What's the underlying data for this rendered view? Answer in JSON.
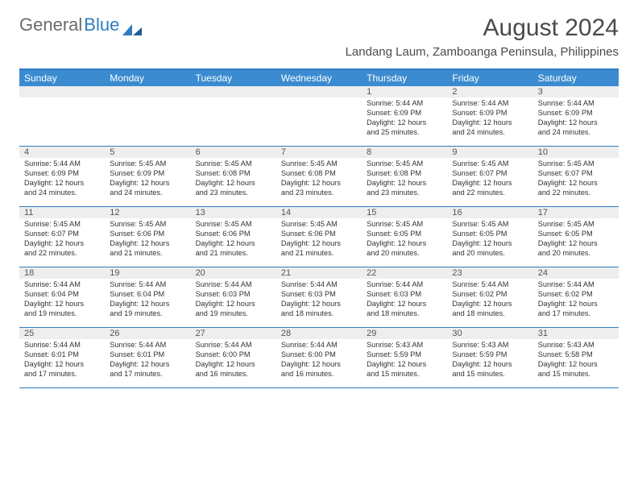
{
  "brand": {
    "text1": "General",
    "text2": "Blue"
  },
  "title": "August 2024",
  "location": "Landang Laum, Zamboanga Peninsula, Philippines",
  "colors": {
    "header_blue": "#3b8bd0",
    "border_blue": "#2f7cc0",
    "daynum_bg": "#eeeeee",
    "text": "#333333",
    "title_text": "#4a4a4a",
    "logo_grey": "#6b6b6b"
  },
  "day_names": [
    "Sunday",
    "Monday",
    "Tuesday",
    "Wednesday",
    "Thursday",
    "Friday",
    "Saturday"
  ],
  "weeks": [
    [
      {
        "n": "",
        "sr": "",
        "ss": "",
        "dl1": "",
        "dl2": ""
      },
      {
        "n": "",
        "sr": "",
        "ss": "",
        "dl1": "",
        "dl2": ""
      },
      {
        "n": "",
        "sr": "",
        "ss": "",
        "dl1": "",
        "dl2": ""
      },
      {
        "n": "",
        "sr": "",
        "ss": "",
        "dl1": "",
        "dl2": ""
      },
      {
        "n": "1",
        "sr": "Sunrise: 5:44 AM",
        "ss": "Sunset: 6:09 PM",
        "dl1": "Daylight: 12 hours",
        "dl2": "and 25 minutes."
      },
      {
        "n": "2",
        "sr": "Sunrise: 5:44 AM",
        "ss": "Sunset: 6:09 PM",
        "dl1": "Daylight: 12 hours",
        "dl2": "and 24 minutes."
      },
      {
        "n": "3",
        "sr": "Sunrise: 5:44 AM",
        "ss": "Sunset: 6:09 PM",
        "dl1": "Daylight: 12 hours",
        "dl2": "and 24 minutes."
      }
    ],
    [
      {
        "n": "4",
        "sr": "Sunrise: 5:44 AM",
        "ss": "Sunset: 6:09 PM",
        "dl1": "Daylight: 12 hours",
        "dl2": "and 24 minutes."
      },
      {
        "n": "5",
        "sr": "Sunrise: 5:45 AM",
        "ss": "Sunset: 6:09 PM",
        "dl1": "Daylight: 12 hours",
        "dl2": "and 24 minutes."
      },
      {
        "n": "6",
        "sr": "Sunrise: 5:45 AM",
        "ss": "Sunset: 6:08 PM",
        "dl1": "Daylight: 12 hours",
        "dl2": "and 23 minutes."
      },
      {
        "n": "7",
        "sr": "Sunrise: 5:45 AM",
        "ss": "Sunset: 6:08 PM",
        "dl1": "Daylight: 12 hours",
        "dl2": "and 23 minutes."
      },
      {
        "n": "8",
        "sr": "Sunrise: 5:45 AM",
        "ss": "Sunset: 6:08 PM",
        "dl1": "Daylight: 12 hours",
        "dl2": "and 23 minutes."
      },
      {
        "n": "9",
        "sr": "Sunrise: 5:45 AM",
        "ss": "Sunset: 6:07 PM",
        "dl1": "Daylight: 12 hours",
        "dl2": "and 22 minutes."
      },
      {
        "n": "10",
        "sr": "Sunrise: 5:45 AM",
        "ss": "Sunset: 6:07 PM",
        "dl1": "Daylight: 12 hours",
        "dl2": "and 22 minutes."
      }
    ],
    [
      {
        "n": "11",
        "sr": "Sunrise: 5:45 AM",
        "ss": "Sunset: 6:07 PM",
        "dl1": "Daylight: 12 hours",
        "dl2": "and 22 minutes."
      },
      {
        "n": "12",
        "sr": "Sunrise: 5:45 AM",
        "ss": "Sunset: 6:06 PM",
        "dl1": "Daylight: 12 hours",
        "dl2": "and 21 minutes."
      },
      {
        "n": "13",
        "sr": "Sunrise: 5:45 AM",
        "ss": "Sunset: 6:06 PM",
        "dl1": "Daylight: 12 hours",
        "dl2": "and 21 minutes."
      },
      {
        "n": "14",
        "sr": "Sunrise: 5:45 AM",
        "ss": "Sunset: 6:06 PM",
        "dl1": "Daylight: 12 hours",
        "dl2": "and 21 minutes."
      },
      {
        "n": "15",
        "sr": "Sunrise: 5:45 AM",
        "ss": "Sunset: 6:05 PM",
        "dl1": "Daylight: 12 hours",
        "dl2": "and 20 minutes."
      },
      {
        "n": "16",
        "sr": "Sunrise: 5:45 AM",
        "ss": "Sunset: 6:05 PM",
        "dl1": "Daylight: 12 hours",
        "dl2": "and 20 minutes."
      },
      {
        "n": "17",
        "sr": "Sunrise: 5:45 AM",
        "ss": "Sunset: 6:05 PM",
        "dl1": "Daylight: 12 hours",
        "dl2": "and 20 minutes."
      }
    ],
    [
      {
        "n": "18",
        "sr": "Sunrise: 5:44 AM",
        "ss": "Sunset: 6:04 PM",
        "dl1": "Daylight: 12 hours",
        "dl2": "and 19 minutes."
      },
      {
        "n": "19",
        "sr": "Sunrise: 5:44 AM",
        "ss": "Sunset: 6:04 PM",
        "dl1": "Daylight: 12 hours",
        "dl2": "and 19 minutes."
      },
      {
        "n": "20",
        "sr": "Sunrise: 5:44 AM",
        "ss": "Sunset: 6:03 PM",
        "dl1": "Daylight: 12 hours",
        "dl2": "and 19 minutes."
      },
      {
        "n": "21",
        "sr": "Sunrise: 5:44 AM",
        "ss": "Sunset: 6:03 PM",
        "dl1": "Daylight: 12 hours",
        "dl2": "and 18 minutes."
      },
      {
        "n": "22",
        "sr": "Sunrise: 5:44 AM",
        "ss": "Sunset: 6:03 PM",
        "dl1": "Daylight: 12 hours",
        "dl2": "and 18 minutes."
      },
      {
        "n": "23",
        "sr": "Sunrise: 5:44 AM",
        "ss": "Sunset: 6:02 PM",
        "dl1": "Daylight: 12 hours",
        "dl2": "and 18 minutes."
      },
      {
        "n": "24",
        "sr": "Sunrise: 5:44 AM",
        "ss": "Sunset: 6:02 PM",
        "dl1": "Daylight: 12 hours",
        "dl2": "and 17 minutes."
      }
    ],
    [
      {
        "n": "25",
        "sr": "Sunrise: 5:44 AM",
        "ss": "Sunset: 6:01 PM",
        "dl1": "Daylight: 12 hours",
        "dl2": "and 17 minutes."
      },
      {
        "n": "26",
        "sr": "Sunrise: 5:44 AM",
        "ss": "Sunset: 6:01 PM",
        "dl1": "Daylight: 12 hours",
        "dl2": "and 17 minutes."
      },
      {
        "n": "27",
        "sr": "Sunrise: 5:44 AM",
        "ss": "Sunset: 6:00 PM",
        "dl1": "Daylight: 12 hours",
        "dl2": "and 16 minutes."
      },
      {
        "n": "28",
        "sr": "Sunrise: 5:44 AM",
        "ss": "Sunset: 6:00 PM",
        "dl1": "Daylight: 12 hours",
        "dl2": "and 16 minutes."
      },
      {
        "n": "29",
        "sr": "Sunrise: 5:43 AM",
        "ss": "Sunset: 5:59 PM",
        "dl1": "Daylight: 12 hours",
        "dl2": "and 15 minutes."
      },
      {
        "n": "30",
        "sr": "Sunrise: 5:43 AM",
        "ss": "Sunset: 5:59 PM",
        "dl1": "Daylight: 12 hours",
        "dl2": "and 15 minutes."
      },
      {
        "n": "31",
        "sr": "Sunrise: 5:43 AM",
        "ss": "Sunset: 5:58 PM",
        "dl1": "Daylight: 12 hours",
        "dl2": "and 15 minutes."
      }
    ]
  ]
}
